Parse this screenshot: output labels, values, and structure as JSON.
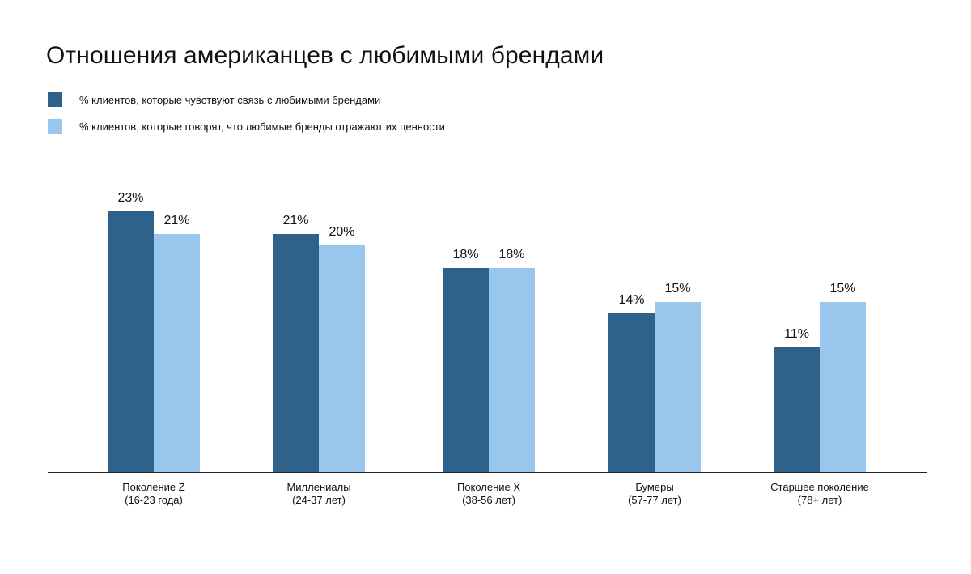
{
  "chart_data": {
    "type": "bar",
    "title": "Отношения американцев с любимыми брендами",
    "categories": [
      {
        "line1": "Поколение Z",
        "line2": "(16-23 года)"
      },
      {
        "line1": "Миллениалы",
        "line2": "(24-37 лет)"
      },
      {
        "line1": "Поколение X",
        "line2": "(38-56 лет)"
      },
      {
        "line1": "Бумеры",
        "line2": "(57-77 лет)"
      },
      {
        "line1": "Старшее поколение",
        "line2": "(78+ лет)"
      }
    ],
    "series": [
      {
        "name": "% клиентов, которые чувствуют связь с любимыми брендами",
        "color": "#2E628A",
        "values": [
          23,
          21,
          18,
          14,
          11
        ],
        "labels": [
          "23%",
          "21%",
          "18%",
          "14%",
          "11%"
        ]
      },
      {
        "name": "% клиентов, которые говорят, что любимые бренды отражают их ценности",
        "color": "#98C6ED",
        "values": [
          21,
          20,
          18,
          15,
          15
        ],
        "labels": [
          "21%",
          "20%",
          "18%",
          "15%",
          "15%"
        ]
      }
    ],
    "xlabel": "",
    "ylabel": "",
    "ylim": [
      0,
      23
    ],
    "grid": false,
    "legend_position": "top-left"
  }
}
